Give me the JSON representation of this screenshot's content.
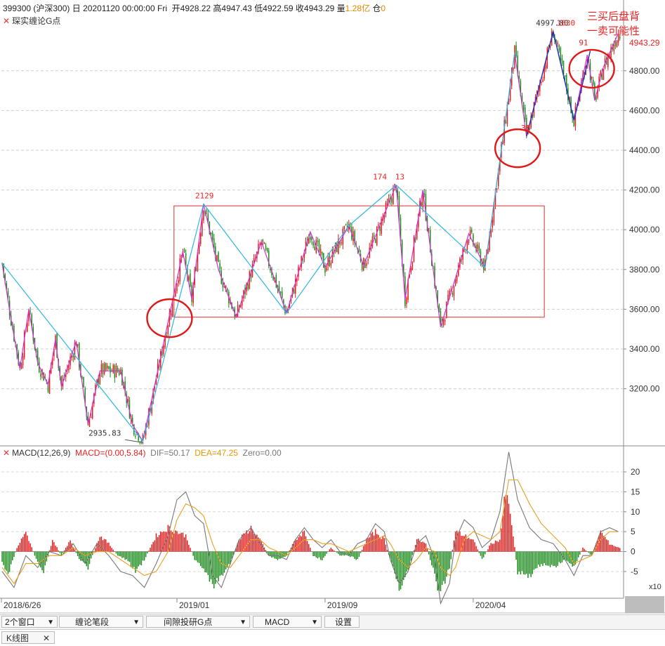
{
  "header": {
    "code": "399300",
    "market": "(沪深300)",
    "period": "日",
    "datetime": "20201120 00:00:00 Fri",
    "open_label": "开",
    "open": "4928.22",
    "high_label": "高",
    "high": "4947.43",
    "low_label": "低",
    "low": "4922.59",
    "close_label": "收",
    "close": "4943.29",
    "amount_label": "量",
    "amount": "1.28亿",
    "hold_label": "仓",
    "hold": "0"
  },
  "indicator_main": {
    "close_icon": "✕",
    "name": "琛实缠论G点"
  },
  "indicator_macd": {
    "close_icon": "✕",
    "name": "MACD(12,26,9)",
    "macd": "MACD=(0.00,5.84)",
    "dif": "DIF=50.17",
    "dea": "DEA=47.25",
    "zero": "Zero=0.00"
  },
  "annotation_note": "三买后盘背\n一卖可能性",
  "colors": {
    "up": "#e21b1b",
    "down": "#1a8a1a",
    "stroke_pen": "#d62fd6",
    "segment": "#2bb8e0",
    "trend": "#2030c0",
    "box": "#e05050",
    "circle": "#e01818",
    "dif": "#777777",
    "dea": "#e8a020"
  },
  "chart_data": [
    {
      "type": "candlestick",
      "title": "",
      "x_ticks": [
        "2018/6/26",
        "2019/01",
        "2019/09",
        "2020/04"
      ],
      "x_tick_index": [
        0,
        118,
        218,
        318
      ],
      "y_ticks": [
        3200,
        3400,
        3600,
        3800,
        4000,
        4200,
        4400,
        4600,
        4800
      ],
      "y_tick_labels": [
        "3200.00",
        "3400.00",
        "3600.00",
        "3800.00",
        "4000.00",
        "4200.00",
        "4400.00",
        "4600.00",
        "4800.00"
      ],
      "ylim": [
        2930,
        5050
      ],
      "last_price_label": "4943.29",
      "pivots": [
        {
          "i": 0,
          "v": 3830
        },
        {
          "i": 20,
          "v": 3600
        },
        {
          "i": 58,
          "v": 3020
        },
        {
          "i": 80,
          "v": 3290
        },
        {
          "i": 95,
          "v": 2936
        },
        {
          "i": 136,
          "v": 4130
        },
        {
          "i": 158,
          "v": 3560
        },
        {
          "i": 175,
          "v": 3940
        },
        {
          "i": 192,
          "v": 3580
        },
        {
          "i": 208,
          "v": 3990
        },
        {
          "i": 218,
          "v": 3810
        },
        {
          "i": 234,
          "v": 4020
        },
        {
          "i": 244,
          "v": 3820
        },
        {
          "i": 266,
          "v": 4225
        },
        {
          "i": 272,
          "v": 3650
        },
        {
          "i": 284,
          "v": 4200
        },
        {
          "i": 296,
          "v": 3510
        },
        {
          "i": 315,
          "v": 3980
        },
        {
          "i": 326,
          "v": 3810
        },
        {
          "i": 346,
          "v": 4890
        },
        {
          "i": 354,
          "v": 4470
        },
        {
          "i": 372,
          "v": 4998
        },
        {
          "i": 386,
          "v": 4550
        },
        {
          "i": 397,
          "v": 4900
        },
        {
          "i": 406,
          "v": 4820
        },
        {
          "i": 416,
          "v": 4990
        }
      ],
      "pen_points": [
        [
          0,
          3830
        ],
        [
          6,
          3550
        ],
        [
          12,
          3300
        ],
        [
          18,
          3600
        ],
        [
          24,
          3330
        ],
        [
          31,
          3220
        ],
        [
          36,
          3450
        ],
        [
          40,
          3210
        ],
        [
          50,
          3440
        ],
        [
          58,
          3020
        ],
        [
          66,
          3290
        ],
        [
          80,
          3290
        ],
        [
          88,
          3020
        ],
        [
          95,
          2936
        ],
        [
          122,
          3890
        ],
        [
          128,
          3650
        ],
        [
          136,
          4130
        ],
        [
          146,
          3800
        ],
        [
          158,
          3560
        ],
        [
          175,
          3940
        ],
        [
          192,
          3580
        ],
        [
          208,
          3990
        ],
        [
          218,
          3810
        ],
        [
          234,
          4020
        ],
        [
          244,
          3820
        ],
        [
          266,
          4225
        ],
        [
          272,
          3650
        ],
        [
          284,
          4200
        ],
        [
          296,
          3510
        ],
        [
          315,
          3980
        ],
        [
          326,
          3810
        ],
        [
          346,
          4890
        ],
        [
          354,
          4470
        ],
        [
          372,
          4998
        ],
        [
          386,
          4550
        ],
        [
          395,
          4880
        ],
        [
          400,
          4650
        ],
        [
          406,
          4820
        ],
        [
          416,
          4990
        ]
      ],
      "segment_points": [
        [
          0,
          3830
        ],
        [
          95,
          2936
        ],
        [
          136,
          4130
        ],
        [
          192,
          3580
        ],
        [
          234,
          4020
        ],
        [
          266,
          4225
        ],
        [
          326,
          3810
        ],
        [
          346,
          4890
        ]
      ],
      "trend_points": [
        [
          354,
          4470
        ],
        [
          372,
          4998
        ],
        [
          386,
          4550
        ],
        [
          397,
          4900
        ]
      ],
      "box": {
        "i0": 116,
        "i1": 366,
        "v0": 3560,
        "v1": 4120
      },
      "circles": [
        {
          "i": 113,
          "v": 3555
        },
        {
          "i": 348,
          "v": 4410
        },
        {
          "i": 398,
          "v": 4810
        }
      ],
      "labels": [
        {
          "i": 136,
          "v": 4130,
          "text": "2129"
        },
        {
          "i": 256,
          "v": 4225,
          "text": "174"
        },
        {
          "i": 271,
          "v": 4225,
          "text": "13"
        },
        {
          "i": 366,
          "v": 4998,
          "text": "4997.80"
        },
        {
          "i": 380,
          "v": 4998,
          "text": "1630"
        },
        {
          "i": 356,
          "v": 4470,
          "text": "38"
        },
        {
          "i": 395,
          "v": 4900,
          "text": "91"
        },
        {
          "i": 64,
          "v": 2936,
          "text": "2935.83"
        }
      ]
    },
    {
      "type": "bar",
      "title": "MACD(12,26,9)",
      "y_ticks": [
        20,
        15,
        10,
        5,
        0,
        -5
      ],
      "y_tick_labels": [
        "20",
        "15",
        "10",
        "5",
        "0",
        "-5"
      ],
      "ylim": [
        -11,
        23
      ],
      "scale_note": "x10",
      "hist_pivots": [
        [
          0,
          -3
        ],
        [
          4,
          -6
        ],
        [
          10,
          1
        ],
        [
          16,
          5
        ],
        [
          22,
          -1
        ],
        [
          28,
          -5
        ],
        [
          34,
          3
        ],
        [
          40,
          -1
        ],
        [
          46,
          3
        ],
        [
          52,
          -2
        ],
        [
          58,
          -4
        ],
        [
          66,
          4
        ],
        [
          72,
          2
        ],
        [
          78,
          -1
        ],
        [
          84,
          -2
        ],
        [
          90,
          -5
        ],
        [
          96,
          -2
        ],
        [
          104,
          4
        ],
        [
          112,
          6
        ],
        [
          118,
          5
        ],
        [
          124,
          4
        ],
        [
          130,
          -2
        ],
        [
          136,
          -4
        ],
        [
          142,
          -9
        ],
        [
          148,
          -6
        ],
        [
          154,
          -3
        ],
        [
          160,
          3
        ],
        [
          168,
          6
        ],
        [
          174,
          3
        ],
        [
          180,
          -1
        ],
        [
          186,
          -2
        ],
        [
          192,
          -1
        ],
        [
          198,
          3
        ],
        [
          204,
          5
        ],
        [
          210,
          -1
        ],
        [
          216,
          -2
        ],
        [
          222,
          1
        ],
        [
          228,
          -1
        ],
        [
          234,
          -1
        ],
        [
          240,
          -2
        ],
        [
          246,
          3
        ],
        [
          252,
          5
        ],
        [
          258,
          3
        ],
        [
          262,
          -2
        ],
        [
          268,
          -9
        ],
        [
          274,
          -5
        ],
        [
          280,
          3
        ],
        [
          286,
          2
        ],
        [
          292,
          -6
        ],
        [
          296,
          -11
        ],
        [
          302,
          -4
        ],
        [
          306,
          5
        ],
        [
          312,
          4
        ],
        [
          318,
          3
        ],
        [
          324,
          -2
        ],
        [
          330,
          2
        ],
        [
          336,
          3
        ],
        [
          340,
          15
        ],
        [
          344,
          7
        ],
        [
          348,
          -5
        ],
        [
          356,
          -6
        ],
        [
          364,
          -3
        ],
        [
          372,
          -4
        ],
        [
          380,
          -2
        ],
        [
          386,
          -4
        ],
        [
          392,
          1
        ],
        [
          398,
          -1
        ],
        [
          404,
          5
        ],
        [
          410,
          2
        ],
        [
          416,
          1
        ]
      ],
      "dif_pivots": [
        [
          0,
          -5
        ],
        [
          8,
          -9
        ],
        [
          16,
          -1
        ],
        [
          24,
          -4
        ],
        [
          32,
          0
        ],
        [
          40,
          -1
        ],
        [
          48,
          2
        ],
        [
          56,
          -3
        ],
        [
          64,
          2
        ],
        [
          72,
          -1
        ],
        [
          80,
          -5
        ],
        [
          88,
          -6
        ],
        [
          96,
          -9
        ],
        [
          104,
          -3
        ],
        [
          112,
          4
        ],
        [
          118,
          13
        ],
        [
          124,
          15
        ],
        [
          130,
          9
        ],
        [
          136,
          7
        ],
        [
          142,
          -6
        ],
        [
          148,
          -9
        ],
        [
          154,
          -3
        ],
        [
          160,
          3
        ],
        [
          168,
          6
        ],
        [
          174,
          2
        ],
        [
          180,
          -1
        ],
        [
          186,
          -1
        ],
        [
          192,
          -2
        ],
        [
          198,
          3
        ],
        [
          204,
          6
        ],
        [
          210,
          3
        ],
        [
          216,
          1
        ],
        [
          222,
          3
        ],
        [
          228,
          0
        ],
        [
          234,
          -1
        ],
        [
          240,
          2
        ],
        [
          246,
          3
        ],
        [
          252,
          7
        ],
        [
          258,
          5
        ],
        [
          262,
          -2
        ],
        [
          268,
          -8
        ],
        [
          274,
          -5
        ],
        [
          280,
          2
        ],
        [
          286,
          4
        ],
        [
          292,
          -2
        ],
        [
          296,
          -13
        ],
        [
          302,
          -8
        ],
        [
          306,
          3
        ],
        [
          312,
          8
        ],
        [
          318,
          6
        ],
        [
          324,
          1
        ],
        [
          330,
          3
        ],
        [
          336,
          10
        ],
        [
          342,
          25
        ],
        [
          348,
          13
        ],
        [
          356,
          6
        ],
        [
          364,
          3
        ],
        [
          372,
          2
        ],
        [
          380,
          -2
        ],
        [
          386,
          -6
        ],
        [
          392,
          -1
        ],
        [
          398,
          -1
        ],
        [
          404,
          5
        ],
        [
          410,
          6
        ],
        [
          416,
          5
        ]
      ],
      "dea_pivots": [
        [
          0,
          -4
        ],
        [
          8,
          -8
        ],
        [
          16,
          -3
        ],
        [
          24,
          -3
        ],
        [
          32,
          -1
        ],
        [
          40,
          -1
        ],
        [
          48,
          1
        ],
        [
          56,
          -1
        ],
        [
          64,
          0
        ],
        [
          72,
          0
        ],
        [
          80,
          -2
        ],
        [
          88,
          -4
        ],
        [
          96,
          -6
        ],
        [
          104,
          -5
        ],
        [
          112,
          0
        ],
        [
          118,
          8
        ],
        [
          124,
          12
        ],
        [
          130,
          11
        ],
        [
          136,
          9
        ],
        [
          142,
          2
        ],
        [
          148,
          -3
        ],
        [
          154,
          -4
        ],
        [
          160,
          -1
        ],
        [
          168,
          3
        ],
        [
          174,
          3
        ],
        [
          180,
          1
        ],
        [
          186,
          0
        ],
        [
          192,
          -1
        ],
        [
          198,
          1
        ],
        [
          204,
          3
        ],
        [
          210,
          3
        ],
        [
          216,
          2
        ],
        [
          222,
          2
        ],
        [
          228,
          1
        ],
        [
          234,
          0
        ],
        [
          240,
          1
        ],
        [
          246,
          2
        ],
        [
          252,
          3
        ],
        [
          258,
          4
        ],
        [
          262,
          2
        ],
        [
          268,
          -2
        ],
        [
          274,
          -4
        ],
        [
          280,
          -2
        ],
        [
          286,
          1
        ],
        [
          292,
          0
        ],
        [
          296,
          -4
        ],
        [
          302,
          -6
        ],
        [
          306,
          -4
        ],
        [
          312,
          3
        ],
        [
          318,
          5
        ],
        [
          324,
          4
        ],
        [
          330,
          3
        ],
        [
          336,
          5
        ],
        [
          342,
          18
        ],
        [
          348,
          18
        ],
        [
          356,
          12
        ],
        [
          364,
          7
        ],
        [
          372,
          4
        ],
        [
          380,
          1
        ],
        [
          386,
          -3
        ],
        [
          392,
          -2
        ],
        [
          398,
          -1
        ],
        [
          404,
          3
        ],
        [
          410,
          5
        ],
        [
          416,
          5
        ]
      ]
    }
  ],
  "bottombar": {
    "window_count": "2个窗口",
    "stroke_type": "缠论笔段",
    "research": "间隙投研G点",
    "indicator": "MACD",
    "settings": "设置",
    "arrow": "▼"
  },
  "tabs": {
    "kline": "K线图",
    "close": "✕"
  }
}
